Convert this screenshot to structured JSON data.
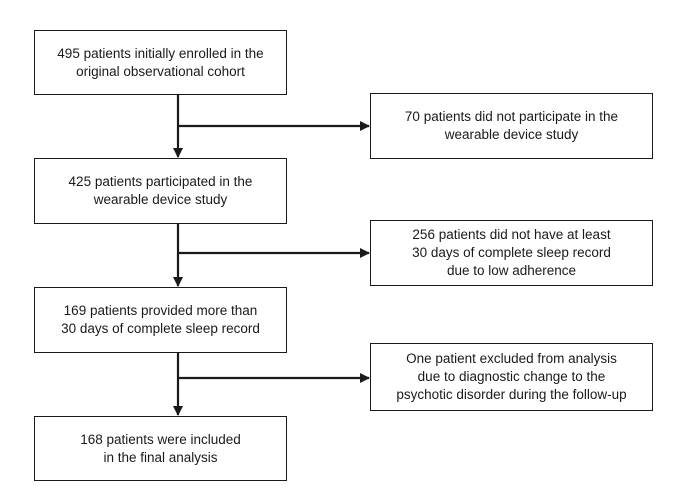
{
  "flowchart": {
    "steps": [
      {
        "text": "495 patients initially enrolled in the\noriginal observational cohort"
      },
      {
        "text": "425 patients participated in the\nwearable device study"
      },
      {
        "text": "169 patients provided more than\n30 days of complete sleep record"
      },
      {
        "text": "168 patients were included\nin the final analysis"
      }
    ],
    "exclusions": [
      {
        "text": "70 patients did not participate in the\nwearable device study"
      },
      {
        "text": "256 patients did not have at least\n30 days of complete sleep record\ndue to low adherence"
      },
      {
        "text": "One patient excluded from analysis\ndue to diagnostic change to the\npsychotic disorder during the follow-up"
      }
    ]
  },
  "colors": {
    "stroke": "#1a1a1a",
    "background": "#ffffff"
  }
}
